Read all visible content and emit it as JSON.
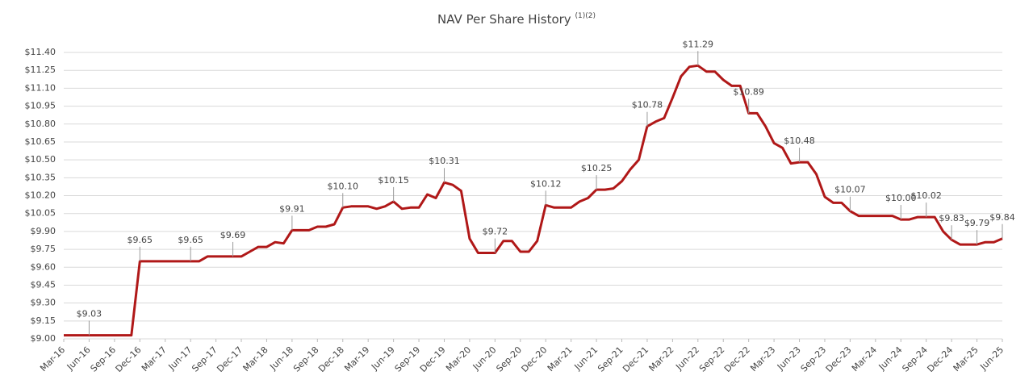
{
  "chart_data": {
    "type": "line",
    "title": "NAV Per Share History",
    "title_note": "(1)(2)",
    "categories": [
      "Mar-16",
      null,
      null,
      "Jun-16",
      null,
      null,
      "Sep-16",
      null,
      null,
      "Dec-16",
      null,
      null,
      "Mar-17",
      null,
      null,
      "Jun-17",
      null,
      null,
      "Sep-17",
      null,
      null,
      "Dec-17",
      null,
      null,
      "Mar-18",
      null,
      null,
      "Jun-18",
      null,
      null,
      "Sep-18",
      null,
      null,
      "Dec-18",
      null,
      null,
      "Mar-19",
      null,
      null,
      "Jun-19",
      null,
      null,
      "Sep-19",
      null,
      null,
      "Dec-19",
      null,
      null,
      "Mar-20",
      null,
      null,
      "Jun-20",
      null,
      null,
      "Sep-20",
      null,
      null,
      "Dec-20",
      null,
      null,
      "Mar-21",
      null,
      null,
      "Jun-21",
      null,
      null,
      "Sep-21",
      null,
      null,
      "Dec-21",
      null,
      null,
      "Mar-22",
      null,
      null,
      "Jun-22",
      null,
      null,
      "Sep-22",
      null,
      null,
      "Dec-22",
      null,
      null,
      "Mar-23",
      null,
      null,
      "Jun-23",
      null,
      null,
      "Sep-23",
      null,
      null,
      "Dec-23",
      null,
      null,
      "Mar-24",
      null,
      null,
      "Jun-24",
      null,
      null,
      "Sep-24",
      null,
      null,
      "Dec-24",
      null,
      null,
      "Mar-25",
      null,
      null,
      "Jun-25"
    ],
    "series": [
      {
        "name": "NAV Per Share",
        "color": "#b01818",
        "values": [
          9.03,
          9.03,
          9.03,
          9.03,
          9.03,
          9.03,
          9.03,
          9.03,
          9.03,
          9.65,
          9.65,
          9.65,
          9.65,
          9.65,
          9.65,
          9.65,
          9.65,
          9.69,
          9.69,
          9.69,
          9.69,
          9.69,
          9.73,
          9.77,
          9.77,
          9.81,
          9.8,
          9.91,
          9.91,
          9.91,
          9.94,
          9.94,
          9.96,
          10.1,
          10.11,
          10.11,
          10.11,
          10.09,
          10.11,
          10.15,
          10.09,
          10.1,
          10.1,
          10.21,
          10.18,
          10.31,
          10.29,
          10.24,
          9.84,
          9.72,
          9.72,
          9.72,
          9.82,
          9.82,
          9.73,
          9.73,
          9.82,
          10.12,
          10.1,
          10.1,
          10.1,
          10.15,
          10.18,
          10.25,
          10.25,
          10.26,
          10.32,
          10.42,
          10.5,
          10.78,
          10.82,
          10.85,
          11.02,
          11.2,
          11.28,
          11.29,
          11.24,
          11.24,
          11.17,
          11.12,
          11.12,
          10.89,
          10.89,
          10.78,
          10.64,
          10.6,
          10.47,
          10.48,
          10.48,
          10.38,
          10.19,
          10.14,
          10.14,
          10.07,
          10.03,
          10.03,
          10.03,
          10.03,
          10.03,
          10.0,
          10.0,
          10.02,
          10.02,
          10.02,
          9.9,
          9.83,
          9.79,
          9.79,
          9.79,
          9.81,
          9.81,
          9.84
        ],
        "value_labels": [
          null,
          null,
          null,
          "$9.03",
          null,
          null,
          null,
          null,
          null,
          "$9.65",
          null,
          null,
          null,
          null,
          null,
          "$9.65",
          null,
          null,
          null,
          null,
          "$9.69",
          null,
          null,
          null,
          null,
          null,
          null,
          "$9.91",
          null,
          null,
          null,
          null,
          null,
          "$10.10",
          null,
          null,
          null,
          null,
          null,
          "$10.15",
          null,
          null,
          null,
          null,
          null,
          "$10.31",
          null,
          null,
          null,
          null,
          null,
          "$9.72",
          null,
          null,
          null,
          null,
          null,
          "$10.12",
          null,
          null,
          null,
          null,
          null,
          "$10.25",
          null,
          null,
          null,
          null,
          null,
          "$10.78",
          null,
          null,
          null,
          null,
          null,
          "$11.29",
          null,
          null,
          null,
          null,
          null,
          "$10.89",
          null,
          null,
          null,
          null,
          null,
          "$10.48",
          null,
          null,
          null,
          null,
          null,
          "$10.07",
          null,
          null,
          null,
          null,
          null,
          "$10.00",
          null,
          null,
          "$10.02",
          null,
          null,
          "$9.83",
          null,
          null,
          "$9.79",
          null,
          null,
          "$9.84"
        ]
      }
    ],
    "ylim": [
      9.0,
      11.4
    ],
    "yticks": [
      {
        "value": 9.0,
        "label": "$9.00"
      },
      {
        "value": 9.15,
        "label": "$9.15"
      },
      {
        "value": 9.3,
        "label": "$9.30"
      },
      {
        "value": 9.45,
        "label": "$9.45"
      },
      {
        "value": 9.6,
        "label": "$9.60"
      },
      {
        "value": 9.75,
        "label": "$9.75"
      },
      {
        "value": 9.9,
        "label": "$9.90"
      },
      {
        "value": 10.05,
        "label": "$10.05"
      },
      {
        "value": 10.2,
        "label": "$10.20"
      },
      {
        "value": 10.35,
        "label": "$10.35"
      },
      {
        "value": 10.5,
        "label": "$10.50"
      },
      {
        "value": 10.65,
        "label": "$10.65"
      },
      {
        "value": 10.8,
        "label": "$10.80"
      },
      {
        "value": 10.95,
        "label": "$10.95"
      },
      {
        "value": 11.1,
        "label": "$11.10"
      },
      {
        "value": 11.25,
        "label": "$11.25"
      },
      {
        "value": 11.4,
        "label": "$11.40"
      }
    ],
    "grid": true
  }
}
